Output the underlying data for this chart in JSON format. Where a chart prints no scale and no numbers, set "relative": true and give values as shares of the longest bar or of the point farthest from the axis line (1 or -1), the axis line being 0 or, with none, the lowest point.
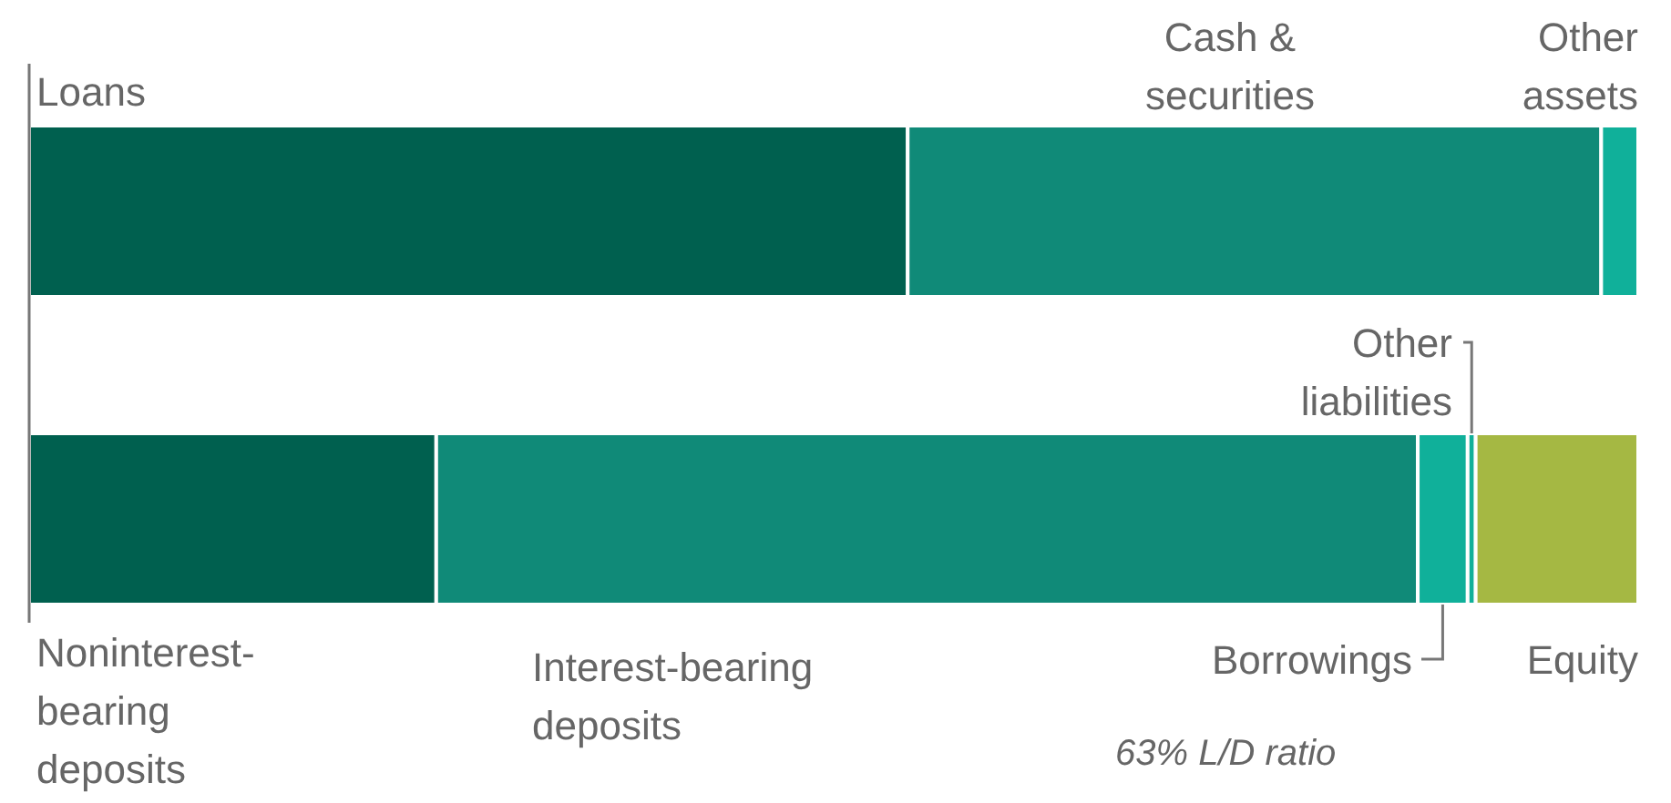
{
  "chart_data": {
    "type": "bar",
    "orientation": "horizontal",
    "stacked": true,
    "relative": true,
    "categories": [
      null,
      null
    ],
    "series": [
      {
        "name": "Loans",
        "color": "#00604f",
        "values": [
          0.546,
          null
        ]
      },
      {
        "name": "Cash & securities",
        "color": "#108a78",
        "values": [
          0.431,
          null
        ]
      },
      {
        "name": "Other assets",
        "color": "#10b09a",
        "values": [
          0.023,
          null
        ]
      },
      {
        "name": "Noninterest-bearing deposits",
        "color": "#00604f",
        "values": [
          null,
          0.253
        ]
      },
      {
        "name": "Interest-bearing deposits",
        "color": "#108a78",
        "values": [
          null,
          0.61
        ]
      },
      {
        "name": "Borrowings",
        "color": "#10b09a",
        "values": [
          null,
          0.031
        ]
      },
      {
        "name": "Other liabilities",
        "color": "#10b09a",
        "values": [
          null,
          0.005
        ]
      },
      {
        "name": "Equity",
        "color": "#a5b843",
        "values": [
          null,
          0.101
        ]
      }
    ],
    "annotations": [
      "63% L/D ratio"
    ]
  }
}
